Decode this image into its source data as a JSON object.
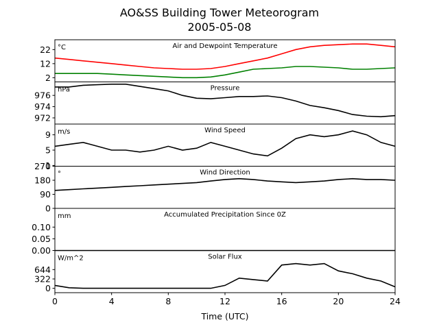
{
  "chart_data": {
    "type": "line",
    "title": "AO&SS Building Tower Meteorogram",
    "subtitle": "2005-05-08",
    "xlabel": "Time (UTC)",
    "x_ticks": [
      "0",
      "4",
      "8",
      "12",
      "16",
      "20",
      "24"
    ],
    "xlim": [
      0,
      24
    ],
    "panels": [
      {
        "title": "Air and Dewpoint Temperature",
        "unit": "°C",
        "ylim": [
          -1,
          29
        ],
        "yticks": [
          {
            "v": 2,
            "label": "2"
          },
          {
            "v": 12,
            "label": "12"
          },
          {
            "v": 22,
            "label": "22"
          }
        ],
        "series": [
          {
            "color": "#ff0000",
            "x": [
              0,
              1,
              2,
              3,
              4,
              5,
              6,
              7,
              8,
              9,
              10,
              11,
              12,
              13,
              14,
              15,
              16,
              17,
              18,
              19,
              20,
              21,
              22,
              23,
              24
            ],
            "y": [
              16,
              15,
              14,
              13,
              12,
              11,
              10,
              9,
              8.5,
              8,
              8,
              8.5,
              10,
              12,
              14,
              16,
              19,
              22,
              24,
              25,
              25.5,
              26,
              26,
              25,
              24
            ]
          },
          {
            "color": "#008000",
            "x": [
              0,
              1,
              2,
              3,
              4,
              5,
              6,
              7,
              8,
              9,
              10,
              11,
              12,
              13,
              14,
              15,
              16,
              17,
              18,
              19,
              20,
              21,
              22,
              23,
              24
            ],
            "y": [
              5,
              5,
              5,
              5,
              4.5,
              4,
              3.5,
              3,
              2.5,
              2,
              2,
              2.5,
              4,
              6,
              8,
              8.5,
              9,
              10,
              10,
              9.5,
              9,
              8,
              8,
              8.5,
              9
            ]
          }
        ]
      },
      {
        "title": "Pressure",
        "unit": "hPa",
        "ylim": [
          970.9,
          978.4
        ],
        "yticks": [
          {
            "v": 972,
            "label": "972"
          },
          {
            "v": 974,
            "label": "974"
          },
          {
            "v": 976,
            "label": "976"
          }
        ],
        "series": [
          {
            "color": "#000000",
            "x": [
              0,
              1,
              2,
              3,
              4,
              5,
              6,
              7,
              8,
              9,
              10,
              11,
              12,
              13,
              14,
              15,
              16,
              17,
              18,
              19,
              20,
              21,
              22,
              23,
              24
            ],
            "y": [
              977.5,
              977.5,
              977.8,
              977.9,
              978,
              978,
              977.6,
              977.2,
              976.8,
              976,
              975.5,
              975.4,
              975.6,
              975.8,
              975.8,
              975.9,
              975.6,
              975,
              974.2,
              973.8,
              973.3,
              972.6,
              972.3,
              972.2,
              972.4
            ]
          }
        ]
      },
      {
        "title": "Wind Speed",
        "unit": "m/s",
        "ylim": [
          0.8,
          11.8
        ],
        "yticks": [
          {
            "v": 1,
            "label": "1"
          },
          {
            "v": 5,
            "label": "5"
          },
          {
            "v": 9,
            "label": "9"
          }
        ],
        "series": [
          {
            "color": "#000000",
            "x": [
              0,
              1,
              2,
              3,
              4,
              5,
              6,
              7,
              8,
              9,
              10,
              11,
              12,
              13,
              14,
              15,
              16,
              17,
              18,
              19,
              20,
              21,
              22,
              23,
              24
            ],
            "y": [
              6,
              6.5,
              7,
              6,
              5,
              5,
              4.5,
              5,
              6,
              5,
              5.5,
              7,
              6,
              5,
              4,
              3.5,
              5.5,
              8,
              9,
              8.5,
              9,
              10,
              9,
              7,
              6
            ]
          }
        ]
      },
      {
        "title": "Wind Direction",
        "unit": "°",
        "ylim": [
          0,
          270
        ],
        "yticks": [
          {
            "v": 0,
            "label": "0"
          },
          {
            "v": 90,
            "label": "90"
          },
          {
            "v": 180,
            "label": "180"
          },
          {
            "v": 270,
            "label": "270"
          }
        ],
        "series": [
          {
            "color": "#000000",
            "x": [
              0,
              1,
              2,
              3,
              4,
              5,
              6,
              7,
              8,
              9,
              10,
              11,
              12,
              13,
              14,
              15,
              16,
              17,
              18,
              19,
              20,
              21,
              22,
              23,
              24
            ],
            "y": [
              115,
              120,
              125,
              130,
              135,
              140,
              145,
              150,
              155,
              160,
              165,
              175,
              185,
              190,
              185,
              175,
              170,
              165,
              170,
              175,
              185,
              190,
              185,
              185,
              180
            ]
          }
        ]
      },
      {
        "title": "Accumulated Precipitation Since 0Z",
        "unit": "mm",
        "ylim": [
          0,
          0.18
        ],
        "yticks": [
          {
            "v": 0,
            "label": "0.00"
          },
          {
            "v": 0.05,
            "label": "0.05"
          },
          {
            "v": 0.1,
            "label": "0.10"
          }
        ],
        "series": [
          {
            "color": "#000000",
            "x": [
              0,
              24
            ],
            "y": [
              0,
              0
            ]
          }
        ]
      },
      {
        "title": "Solar Flux",
        "unit": "W/m^2",
        "ylim": [
          -150,
          1300
        ],
        "yticks": [
          {
            "v": 0,
            "label": "0"
          },
          {
            "v": 322,
            "label": "322"
          },
          {
            "v": 644,
            "label": "644"
          }
        ],
        "series": [
          {
            "color": "#000000",
            "x": [
              0,
              1,
              2,
              3,
              4,
              5,
              6,
              7,
              8,
              9,
              10,
              11,
              12,
              13,
              14,
              15,
              16,
              17,
              18,
              19,
              20,
              21,
              22,
              23,
              24
            ],
            "y": [
              100,
              20,
              0,
              0,
              0,
              0,
              0,
              0,
              0,
              0,
              0,
              0,
              100,
              350,
              300,
              250,
              800,
              850,
              800,
              850,
              600,
              500,
              350,
              250,
              50
            ]
          }
        ]
      }
    ]
  }
}
